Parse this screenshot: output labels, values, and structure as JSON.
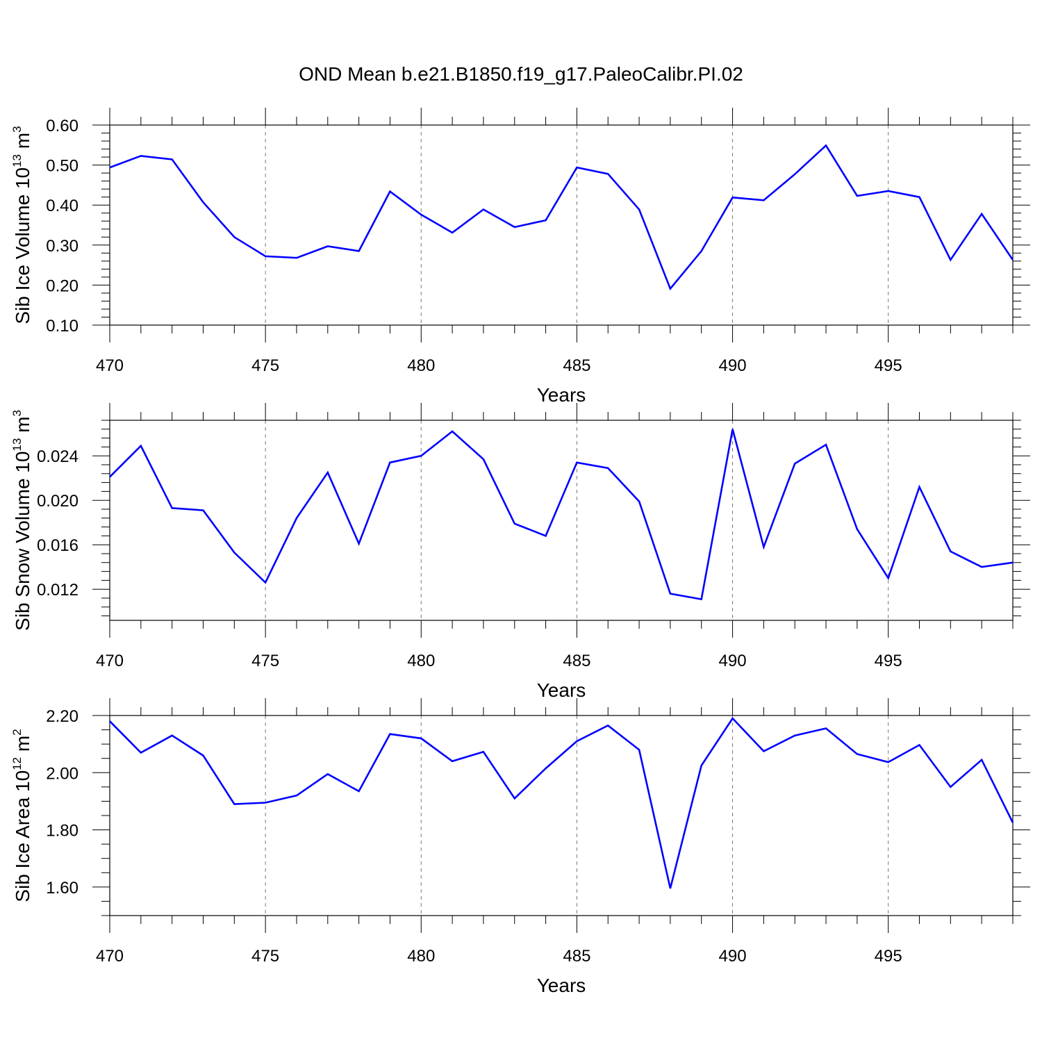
{
  "title": "OND Mean b.e21.B1850.f19_g17.PaleoCalibr.PI.02",
  "line_color": "#0000ff",
  "chart_data": [
    {
      "type": "line",
      "ylabel": "Sib Ice Volume 10",
      "ylabel_exp": "13",
      "ylabel_unit": " m",
      "ylabel_unit_exp": "3",
      "xlabel": "Years",
      "xlim": [
        470,
        499
      ],
      "ylim": [
        0.1,
        0.6
      ],
      "x_ticks": [
        470,
        475,
        480,
        485,
        490,
        495
      ],
      "y_ticks": [
        0.1,
        0.2,
        0.3,
        0.4,
        0.5,
        0.6
      ],
      "y_tick_labels": [
        "0.10",
        "0.20",
        "0.30",
        "0.40",
        "0.50",
        "0.60"
      ],
      "y_minor_step": 0.02,
      "grid": "vertical dashed at major x ticks",
      "x": [
        470,
        471,
        472,
        473,
        474,
        475,
        476,
        477,
        478,
        479,
        480,
        481,
        482,
        483,
        484,
        485,
        486,
        487,
        488,
        489,
        490,
        491,
        492,
        493,
        494,
        495,
        496,
        497,
        498,
        499
      ],
      "values": [
        0.494,
        0.523,
        0.514,
        0.407,
        0.32,
        0.272,
        0.268,
        0.297,
        0.285,
        0.434,
        0.376,
        0.331,
        0.389,
        0.345,
        0.362,
        0.494,
        0.478,
        0.389,
        0.191,
        0.285,
        0.419,
        0.412,
        0.477,
        0.549,
        0.423,
        0.435,
        0.42,
        0.263,
        0.378,
        0.263
      ]
    },
    {
      "type": "line",
      "ylabel": "Sib Snow Volume 10",
      "ylabel_exp": "13",
      "ylabel_unit": " m",
      "ylabel_unit_exp": "3",
      "xlabel": "Years",
      "xlim": [
        470,
        499
      ],
      "ylim": [
        0.0092,
        0.0272
      ],
      "x_ticks": [
        470,
        475,
        480,
        485,
        490,
        495
      ],
      "y_ticks": [
        0.012,
        0.016,
        0.02,
        0.024
      ],
      "y_tick_labels": [
        "0.012",
        "0.016",
        "0.020",
        "0.024"
      ],
      "y_minor_step": 0.0008,
      "grid": "vertical dashed at major x ticks",
      "x": [
        470,
        471,
        472,
        473,
        474,
        475,
        476,
        477,
        478,
        479,
        480,
        481,
        482,
        483,
        484,
        485,
        486,
        487,
        488,
        489,
        490,
        491,
        492,
        493,
        494,
        495,
        496,
        497,
        498,
        499
      ],
      "values": [
        0.0221,
        0.0249,
        0.0193,
        0.0191,
        0.0153,
        0.0126,
        0.0184,
        0.0225,
        0.0161,
        0.0234,
        0.024,
        0.0262,
        0.0237,
        0.0179,
        0.0168,
        0.0234,
        0.0229,
        0.0199,
        0.0116,
        0.0111,
        0.0264,
        0.0158,
        0.0233,
        0.025,
        0.0174,
        0.013,
        0.0212,
        0.0154,
        0.014,
        0.0144
      ]
    },
    {
      "type": "line",
      "ylabel": "Sib Ice Area 10",
      "ylabel_exp": "12",
      "ylabel_unit": " m",
      "ylabel_unit_exp": "2",
      "xlabel": "Years",
      "xlim": [
        470,
        499
      ],
      "ylim": [
        1.5,
        2.2
      ],
      "x_ticks": [
        470,
        475,
        480,
        485,
        490,
        495
      ],
      "y_ticks": [
        1.6,
        1.8,
        2.0,
        2.2
      ],
      "y_tick_labels": [
        "1.60",
        "1.80",
        "2.00",
        "2.20"
      ],
      "y_minor_step": 0.05,
      "grid": "vertical dashed at major x ticks",
      "x": [
        470,
        471,
        472,
        473,
        474,
        475,
        476,
        477,
        478,
        479,
        480,
        481,
        482,
        483,
        484,
        485,
        486,
        487,
        488,
        489,
        490,
        491,
        492,
        493,
        494,
        495,
        496,
        497,
        498,
        499
      ],
      "values": [
        2.18,
        2.07,
        2.13,
        2.06,
        1.89,
        1.895,
        1.92,
        1.995,
        1.935,
        2.135,
        2.12,
        2.04,
        2.073,
        1.91,
        2.015,
        2.11,
        2.165,
        2.08,
        1.595,
        2.025,
        2.19,
        2.075,
        2.13,
        2.155,
        2.065,
        2.037,
        2.097,
        1.95,
        2.045,
        1.825
      ]
    }
  ]
}
